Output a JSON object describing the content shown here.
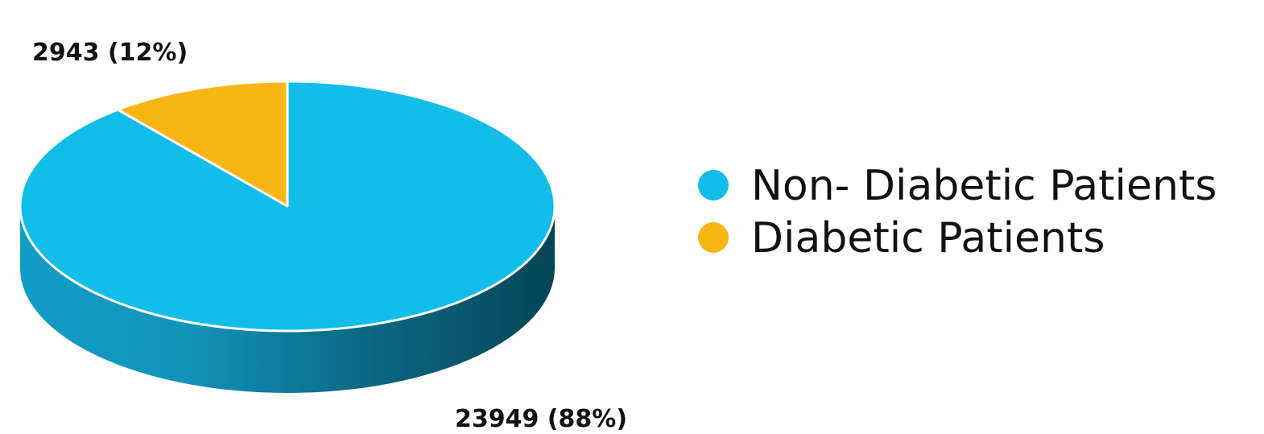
{
  "chart_data": {
    "type": "pie",
    "style": "3d",
    "start_angle_deg": 0,
    "direction": "clockwise",
    "slices": [
      {
        "name": "Non- Diabetic Patients",
        "value": 23949,
        "percent": 88,
        "label": "23949 (88%)",
        "color": "#12BDEA"
      },
      {
        "name": "Diabetic Patients",
        "value": 2943,
        "percent": 12,
        "label": "2943 (12%)",
        "color": "#F7B614"
      }
    ],
    "legend": {
      "placement": "right",
      "entries": [
        "Non- Diabetic Patients",
        "Diabetic Patients"
      ]
    },
    "side_colors": {
      "light": "#139DC6",
      "dark": "#064557"
    }
  }
}
